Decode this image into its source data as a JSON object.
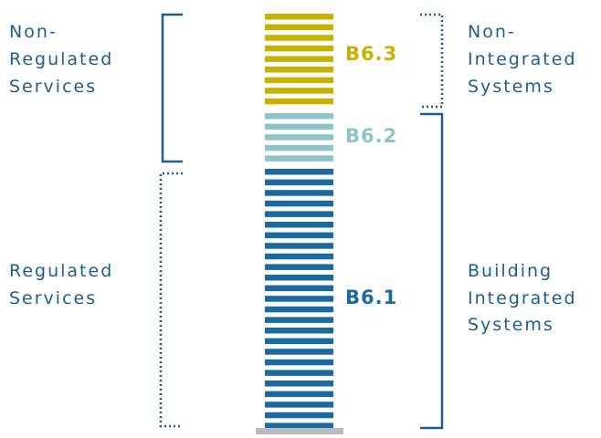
{
  "left_labels": [
    {
      "lines": [
        "Non-",
        "Regulated",
        "Services"
      ]
    },
    {
      "lines": [
        "Regulated",
        "Services"
      ]
    }
  ],
  "right_labels": [
    {
      "lines": [
        "Non-",
        "Integrated",
        "Systems"
      ]
    },
    {
      "lines": [
        "Building",
        "Integrated",
        "Systems"
      ]
    }
  ],
  "sections": [
    {
      "label": "B6.3"
    },
    {
      "label": "B6.2"
    },
    {
      "label": "B6.1"
    }
  ]
}
